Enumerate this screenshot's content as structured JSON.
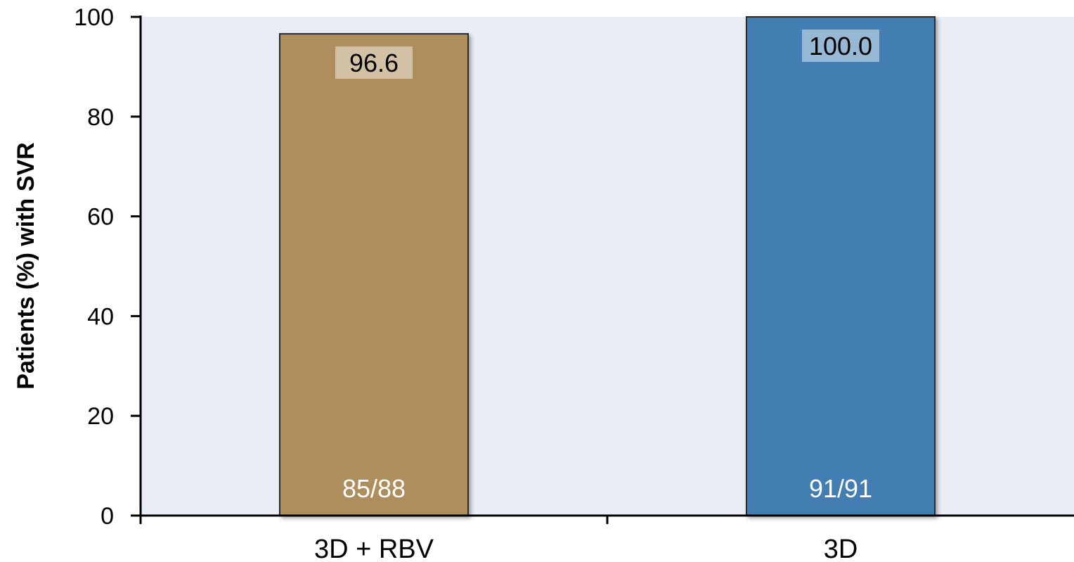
{
  "chart_data": {
    "type": "bar",
    "categories": [
      "3D + RBV",
      "3D"
    ],
    "values": [
      96.6,
      100.0
    ],
    "value_labels": [
      "96.6",
      "100.0"
    ],
    "n_labels": [
      "85/88",
      "91/91"
    ],
    "colors": [
      "#ad8e5c",
      "#427eb1"
    ],
    "title": "",
    "xlabel": "",
    "ylabel": "Patients (%) with SVR",
    "ylim": [
      0,
      100
    ],
    "yticks": [
      0,
      20,
      40,
      60,
      80,
      100
    ],
    "grid": false,
    "plot_background": "#e9edf5"
  }
}
